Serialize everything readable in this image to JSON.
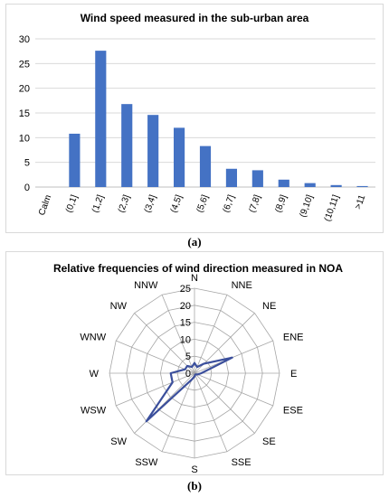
{
  "chart_data": [
    {
      "type": "bar",
      "title": "Wind speed measured in the sub-urban area",
      "xlabel": "",
      "ylabel": "",
      "categories": [
        "Calm",
        "(0,1]",
        "(1,2]",
        "(2,3]",
        "(3,4]",
        "(4,5]",
        "(5,6]",
        "(6,7]",
        "(7,8]",
        "(8,9]",
        "(9,10]",
        "(10,11]",
        ">11"
      ],
      "values": [
        0,
        10.8,
        27.6,
        16.8,
        14.6,
        12.0,
        8.3,
        3.7,
        3.4,
        1.5,
        0.8,
        0.4,
        0.2
      ],
      "ylim": [
        0,
        30
      ],
      "yticks": [
        "0",
        "5",
        "10",
        "15",
        "20",
        "25",
        "30"
      ],
      "grid": true,
      "bar_color": "#4472c4"
    },
    {
      "type": "radar",
      "title": "Relative frequencies of wind direction measured in NOA",
      "categories": [
        "N",
        "NNE",
        "NE",
        "ENE",
        "E",
        "ESE",
        "SE",
        "SSE",
        "S",
        "SSW",
        "SW",
        "WSW",
        "W",
        "WNW",
        "NW",
        "NNW"
      ],
      "values": [
        3,
        2,
        4,
        12,
        2,
        1,
        0.5,
        0.5,
        1,
        2,
        20,
        7,
        7,
        3,
        3,
        2
      ],
      "rlim": [
        0,
        25
      ],
      "rticks": [
        "0",
        "5",
        "10",
        "15",
        "20",
        "25"
      ],
      "grid": true,
      "line_color": "#3b4f9c"
    }
  ],
  "captions": {
    "a": "(a)",
    "b": "(b)"
  }
}
